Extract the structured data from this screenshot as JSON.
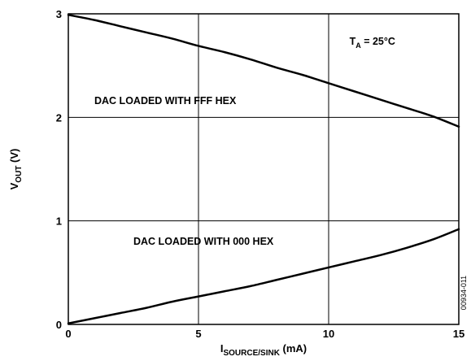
{
  "chart_data": {
    "type": "line",
    "x_axis": {
      "label_main": "I",
      "label_sub": "SOURCE/SINK",
      "label_unit": " (mA)",
      "range": [
        0,
        15
      ],
      "ticks": [
        0,
        5,
        10,
        15
      ],
      "tick_labels": [
        "0",
        "5",
        "10",
        "15"
      ]
    },
    "y_axis": {
      "label_main": "V",
      "label_sub": "OUT",
      "label_unit": " (V)",
      "range": [
        0,
        3
      ],
      "ticks": [
        0,
        1,
        2,
        3
      ],
      "tick_labels": [
        "0",
        "1",
        "2",
        "3"
      ]
    },
    "grid": true,
    "series": [
      {
        "x": [
          0,
          1,
          2,
          3,
          4,
          5,
          6,
          7,
          8,
          9,
          10,
          11,
          12,
          13,
          14,
          15
        ],
        "y": [
          2.99,
          2.94,
          2.88,
          2.82,
          2.76,
          2.69,
          2.63,
          2.56,
          2.48,
          2.41,
          2.33,
          2.25,
          2.17,
          2.09,
          2.01,
          1.91
        ]
      },
      {
        "x": [
          0,
          1,
          2,
          3,
          4,
          5,
          6,
          7,
          8,
          9,
          10,
          11,
          12,
          13,
          14,
          15
        ],
        "y": [
          0.01,
          0.06,
          0.11,
          0.16,
          0.22,
          0.27,
          0.32,
          0.37,
          0.43,
          0.49,
          0.55,
          0.61,
          0.67,
          0.74,
          0.82,
          0.92
        ]
      }
    ],
    "annotations": [
      {
        "text": "DAC LOADED WITH FFF HEX",
        "x": 1,
        "y": 2.13
      },
      {
        "text": "DAC LOADED WITH 000 HEX",
        "x": 2.5,
        "y": 0.77
      }
    ],
    "temperature": {
      "main": "T",
      "sub": "A",
      "rest": " = 25°C",
      "x": 10.8,
      "y": 2.7
    },
    "figure_id": "00934-011"
  }
}
